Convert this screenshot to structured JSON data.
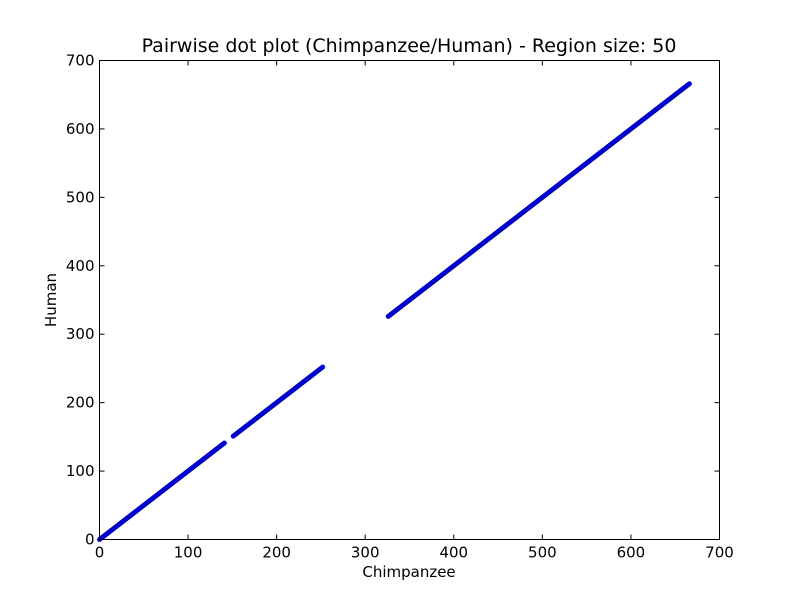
{
  "chart_data": {
    "type": "scatter",
    "title": "Pairwise dot plot (Chimpanzee/Human) - Region size: 50",
    "xlabel": "Chimpanzee",
    "ylabel": "Human",
    "xlim": [
      0,
      700
    ],
    "ylim": [
      0,
      700
    ],
    "xticks": [
      "0",
      "100",
      "200",
      "300",
      "400",
      "500",
      "600",
      "700"
    ],
    "yticks": [
      "0",
      "100",
      "200",
      "300",
      "400",
      "500",
      "600",
      "700"
    ],
    "grid": false,
    "legend": "none",
    "marker_color": "#0000ff",
    "marker_edge_color": "#000080",
    "series": [
      {
        "segments": [
          {
            "x": [
              0,
              141
            ],
            "y": [
              0,
              141
            ]
          },
          {
            "x": [
              151,
              252
            ],
            "y": [
              151,
              252
            ]
          },
          {
            "x": [
              326,
              666
            ],
            "y": [
              326,
              666
            ]
          }
        ]
      }
    ]
  }
}
